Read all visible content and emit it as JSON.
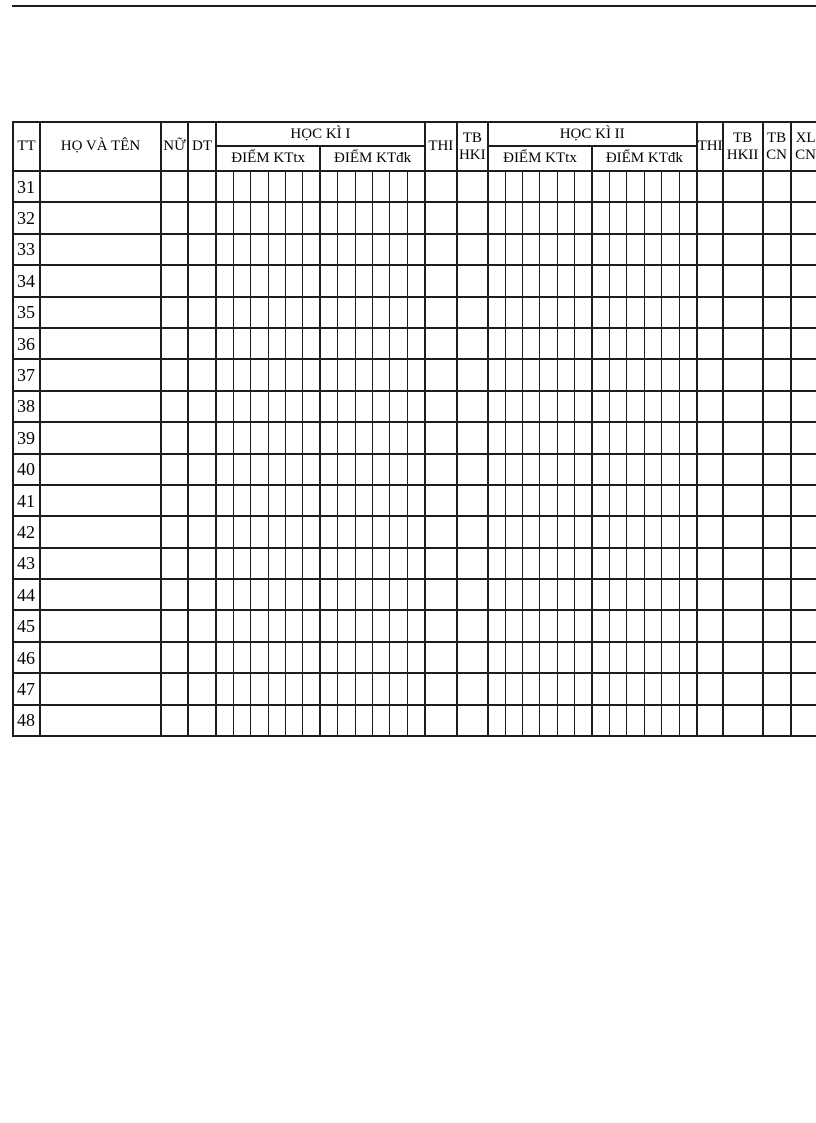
{
  "colors": {
    "border": "#1d1d1d",
    "background": "#ffffff",
    "text": "#000000"
  },
  "table": {
    "header": {
      "tt": "TT",
      "ho_va_ten": "HỌ VÀ TÊN",
      "nu": "NỮ",
      "dt": "DT",
      "hoc_ki_1": "HỌC KÌ I",
      "diem_kttx": "ĐIỂM KTtx",
      "diem_ktdk": "ĐIỂM KTđk",
      "thi": "THI",
      "tb_hki": {
        "line1": "TB",
        "line2": "HKI"
      },
      "hoc_ki_2": "HỌC KÌ II",
      "tb_hkii": {
        "line1": "TB",
        "line2": "HKII"
      },
      "tb_cn": {
        "line1": "TB",
        "line2": "CN"
      },
      "xl_cn": {
        "line1": "XL",
        "line2": "CN"
      }
    },
    "sub_columns_per_group": 6,
    "row_numbers": [
      "31",
      "32",
      "33",
      "34",
      "35",
      "36",
      "37",
      "38",
      "39",
      "40",
      "41",
      "42",
      "43",
      "44",
      "45",
      "46",
      "47",
      "48"
    ]
  }
}
